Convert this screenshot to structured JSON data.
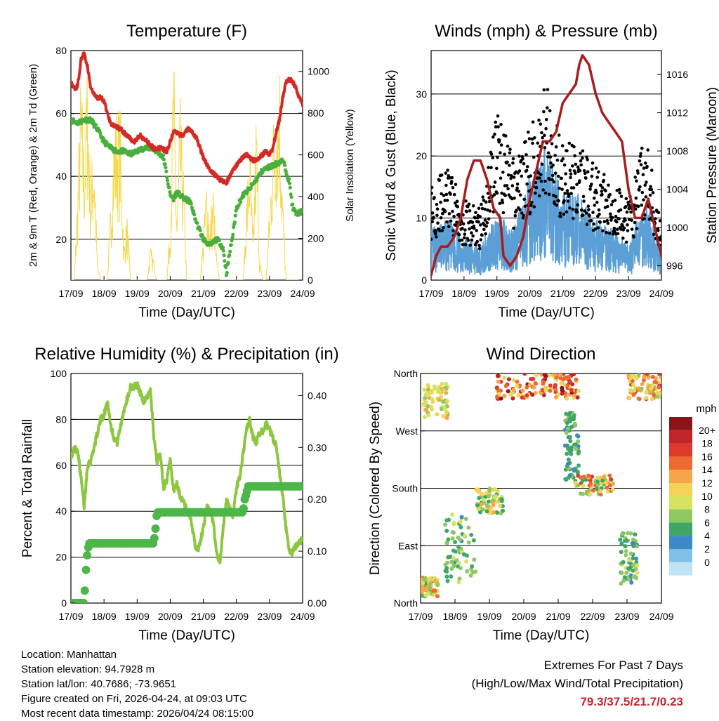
{
  "chart_data": [
    {
      "type": "line",
      "title": "Temperature (F)",
      "xlabel": "Time (Day/UTC)",
      "ylabel": "2m & 9m T (Red, Orange) & 2m Td (Green)",
      "y2label": "Solar Insolation (Yellow)",
      "x_ticks": [
        "17/09",
        "18/09",
        "19/09",
        "20/09",
        "21/09",
        "22/09",
        "23/09",
        "24/09"
      ],
      "ylim": [
        7,
        80
      ],
      "y_ticks": [
        20,
        40,
        60,
        80
      ],
      "y2lim": [
        0,
        1100
      ],
      "y2_ticks": [
        0,
        200,
        400,
        600,
        800,
        1000
      ],
      "colors": {
        "temp": "#d42a25",
        "dew": "#4aae3c",
        "solar": "#f5d84c"
      },
      "series": [
        {
          "name": "2m T",
          "axis": "left",
          "x": [
            0,
            0.05,
            0.1,
            0.15,
            0.2,
            0.25,
            0.3,
            0.4,
            0.5,
            0.6,
            0.7,
            0.8,
            0.9,
            1.0,
            1.1,
            1.2,
            1.3,
            1.5,
            1.7,
            1.9,
            2.1,
            2.3,
            2.5,
            2.7,
            2.9,
            3.0,
            3.1,
            3.2,
            3.3,
            3.4,
            3.5,
            3.6,
            3.8,
            4.0,
            4.1,
            4.2,
            4.3,
            4.5,
            4.7,
            4.9,
            5.1,
            5.3,
            5.5,
            5.7,
            5.9,
            6.0,
            6.1,
            6.2,
            6.3,
            6.4,
            6.5,
            6.6,
            6.7,
            6.8,
            6.9,
            7.0
          ],
          "values": [
            70,
            69,
            68,
            68,
            69,
            72,
            77,
            79,
            75,
            68,
            66,
            65,
            65,
            64,
            60,
            57,
            56,
            55,
            53,
            51,
            53,
            51,
            49,
            49,
            48,
            51,
            54,
            54,
            53,
            53,
            55,
            55,
            52,
            46,
            44,
            42,
            41,
            39,
            38,
            42,
            45,
            47,
            45,
            46,
            48,
            47,
            49,
            54,
            58,
            65,
            70,
            71,
            70,
            68,
            65,
            63
          ]
        },
        {
          "name": "2m Td",
          "axis": "left",
          "x": [
            0,
            0.2,
            0.4,
            0.6,
            0.8,
            1.0,
            1.2,
            1.4,
            1.6,
            1.8,
            2.0,
            2.2,
            2.4,
            2.6,
            2.8,
            3.0,
            3.1,
            3.2,
            3.4,
            3.6,
            3.8,
            4.0,
            4.2,
            4.4,
            4.5,
            4.6,
            4.7,
            4.8,
            4.9,
            5.0,
            5.2,
            5.4,
            5.6,
            5.8,
            6.0,
            6.2,
            6.4,
            6.5,
            6.6,
            6.7,
            6.8,
            7.0
          ],
          "values": [
            58,
            57,
            58,
            58,
            55,
            51,
            49,
            48,
            48,
            47,
            48,
            49,
            49,
            48,
            46,
            34,
            33,
            35,
            33,
            32,
            25,
            20,
            18,
            20,
            19,
            17,
            9,
            16,
            22,
            30,
            34,
            36,
            39,
            42,
            43,
            44,
            45,
            42,
            38,
            30,
            28,
            29
          ]
        },
        {
          "name": "Solar",
          "axis": "right",
          "x": [
            0,
            0.1,
            0.2,
            0.3,
            0.4,
            0.5,
            0.6,
            0.7,
            0.8,
            0.9,
            1.0,
            1.1,
            1.2,
            1.3,
            1.4,
            1.5,
            1.6,
            1.7,
            1.8,
            1.9,
            2.0,
            2.1,
            2.2,
            2.3,
            2.4,
            2.5,
            2.6,
            2.7,
            2.8,
            2.9,
            3.0,
            3.1,
            3.2,
            3.3,
            3.4,
            3.5,
            3.6,
            3.7,
            3.8,
            3.9,
            4.0,
            4.1,
            4.2,
            4.3,
            4.4,
            4.5,
            4.6,
            4.7,
            4.8,
            4.9,
            5.0,
            5.1,
            5.2,
            5.3,
            5.4,
            5.5,
            5.6,
            5.7,
            5.8,
            5.9,
            6.0,
            6.1,
            6.2,
            6.3,
            6.4,
            6.5,
            6.6,
            6.7,
            6.8,
            6.9,
            7.0
          ],
          "values": [
            0,
            0,
            400,
            950,
            600,
            1000,
            450,
            700,
            80,
            0,
            0,
            0,
            350,
            700,
            800,
            750,
            150,
            300,
            0,
            0,
            0,
            0,
            0,
            0,
            150,
            100,
            0,
            0,
            0,
            0,
            300,
            1070,
            300,
            800,
            500,
            0,
            0,
            0,
            0,
            0,
            200,
            500,
            250,
            450,
            100,
            0,
            0,
            0,
            0,
            0,
            0,
            0,
            0,
            350,
            650,
            180,
            800,
            100,
            0,
            0,
            350,
            700,
            900,
            1000,
            400,
            0,
            0,
            0,
            0,
            0,
            0
          ]
        }
      ]
    },
    {
      "type": "line",
      "title": "Winds (mph) & Pressure (mb)",
      "xlabel": "Time (Day/UTC)",
      "ylabel": "Sonic Wind & Gust (Blue, Black)",
      "y2label": "Station Pressure (Maroon)",
      "x_ticks": [
        "17/09",
        "18/09",
        "19/09",
        "20/09",
        "21/09",
        "22/09",
        "23/09",
        "24/09"
      ],
      "ylim": [
        0,
        37
      ],
      "y_ticks": [
        0,
        10,
        20,
        30
      ],
      "y2lim": [
        994.5,
        1018.5
      ],
      "y2_ticks": [
        996,
        1000,
        1004,
        1008,
        1012,
        1016
      ],
      "colors": {
        "wind": "#5b9fd6",
        "gust": "#000000",
        "pressure": "#a81d1d"
      },
      "series": [
        {
          "name": "Wind",
          "axis": "left",
          "x": [
            0,
            0.5,
            1.0,
            1.5,
            2.0,
            2.5,
            3.0,
            3.5,
            4.0,
            4.5,
            5.0,
            5.5,
            6.0,
            6.5,
            7.0
          ],
          "values": [
            6,
            7,
            5,
            4,
            8,
            6,
            12,
            16,
            10,
            10,
            7,
            6,
            4,
            10,
            3
          ]
        },
        {
          "name": "Gust",
          "axis": "left",
          "x": [
            0,
            0.5,
            1.0,
            1.5,
            2.0,
            2.5,
            3.0,
            3.5,
            4.0,
            4.5,
            5.0,
            5.5,
            6.0,
            6.5,
            7.0
          ],
          "values": [
            12,
            14,
            10,
            9,
            22,
            15,
            19,
            25,
            17,
            17,
            14,
            13,
            10,
            18,
            8
          ]
        },
        {
          "name": "Pressure",
          "axis": "right",
          "x": [
            0,
            0.15,
            0.3,
            0.5,
            0.7,
            0.9,
            1.1,
            1.3,
            1.5,
            1.7,
            1.9,
            2.1,
            2.2,
            2.4,
            2.6,
            2.8,
            3.0,
            3.2,
            3.4,
            3.6,
            3.8,
            4.0,
            4.2,
            4.4,
            4.5,
            4.6,
            4.8,
            5.0,
            5.2,
            5.4,
            5.6,
            5.8,
            6.0,
            6.2,
            6.4,
            6.6,
            6.8,
            7.0
          ],
          "values": [
            995,
            997,
            998,
            998,
            999,
            1001,
            1005,
            1007,
            1007,
            1005,
            1002,
            1001,
            997,
            996,
            997,
            999,
            1003,
            1006,
            1009,
            1009,
            1010,
            1013,
            1014,
            1015,
            1017,
            1018,
            1017,
            1014,
            1012,
            1011,
            1010,
            1009,
            1004,
            1001,
            1001,
            1003,
            1000,
            997
          ]
        }
      ]
    },
    {
      "type": "line",
      "title": "Relative Humidity (%) & Precipitation (in)",
      "xlabel": "Time (Day/UTC)",
      "ylabel": "Percent & Total Rainfall",
      "x_ticks": [
        "17/09",
        "18/09",
        "19/09",
        "20/09",
        "21/09",
        "22/09",
        "23/09",
        "24/09"
      ],
      "ylim": [
        0,
        100
      ],
      "y_ticks": [
        0,
        20,
        40,
        60,
        80,
        100
      ],
      "y2lim": [
        0,
        0.4425
      ],
      "y2_ticks": [
        "0.00",
        "0.10",
        "0.20",
        "0.30",
        "0.40"
      ],
      "colors": {
        "rh": "#8dc63f",
        "precip": "#4cb748"
      },
      "series": [
        {
          "name": "Relative Humidity",
          "axis": "left",
          "x": [
            0,
            0.1,
            0.2,
            0.3,
            0.4,
            0.5,
            0.6,
            0.7,
            0.8,
            0.9,
            1.0,
            1.1,
            1.2,
            1.3,
            1.4,
            1.6,
            1.8,
            2.0,
            2.2,
            2.4,
            2.5,
            2.6,
            2.7,
            2.8,
            2.9,
            3.0,
            3.1,
            3.2,
            3.3,
            3.4,
            3.5,
            3.6,
            3.7,
            3.8,
            3.9,
            4.0,
            4.1,
            4.2,
            4.3,
            4.4,
            4.5,
            4.6,
            4.7,
            4.8,
            4.9,
            5.0,
            5.1,
            5.2,
            5.3,
            5.4,
            5.5,
            5.6,
            5.7,
            5.8,
            5.9,
            6.0,
            6.2,
            6.4,
            6.5,
            6.6,
            6.7,
            6.8,
            7.0
          ],
          "values": [
            64,
            67,
            67,
            55,
            42,
            60,
            62,
            68,
            74,
            80,
            82,
            88,
            78,
            72,
            70,
            84,
            94,
            95,
            88,
            92,
            74,
            62,
            65,
            50,
            54,
            62,
            48,
            52,
            46,
            45,
            40,
            38,
            30,
            22,
            26,
            33,
            42,
            40,
            35,
            22,
            18,
            33,
            44,
            42,
            38,
            50,
            55,
            65,
            75,
            80,
            72,
            70,
            74,
            75,
            78,
            76,
            68,
            46,
            32,
            22,
            22,
            25,
            28
          ]
        },
        {
          "name": "Total Precipitation",
          "axis": "right",
          "x": [
            0,
            0.4,
            0.45,
            0.5,
            0.55,
            1.0,
            2.0,
            2.5,
            2.55,
            2.6,
            3.0,
            4.0,
            5.0,
            5.2,
            5.25,
            5.3,
            5.35,
            6.0,
            7.0
          ],
          "values": [
            0,
            0,
            0.06,
            0.1,
            0.115,
            0.115,
            0.115,
            0.115,
            0.14,
            0.175,
            0.175,
            0.175,
            0.175,
            0.175,
            0.2,
            0.21,
            0.225,
            0.225,
            0.225
          ]
        }
      ]
    },
    {
      "type": "scatter",
      "title": "Wind Direction",
      "xlabel": "Time (Day/UTC)",
      "ylabel": "Direction (Colored By Speed)",
      "x_ticks": [
        "17/09",
        "18/09",
        "19/09",
        "20/09",
        "21/09",
        "22/09",
        "23/09",
        "24/09"
      ],
      "y_ticks": [
        "North",
        "East",
        "South",
        "West",
        "North"
      ],
      "legend_title": "mph",
      "legend_labels": [
        "20+",
        "18",
        "16",
        "14",
        "12",
        "10",
        "8",
        "6",
        "4",
        "2",
        "0"
      ],
      "legend_colors": [
        "#8c1418",
        "#c0252a",
        "#dc3a2a",
        "#ee6a33",
        "#f6a64a",
        "#f4d257",
        "#d6e35e",
        "#90c860",
        "#3ea766",
        "#3d88c6",
        "#7fc0e8",
        "#bfe4f6"
      ],
      "clusters": [
        {
          "x": [
            0.1,
            0.8
          ],
          "dir": [
            290,
            345
          ],
          "speed": [
            6,
            12
          ]
        },
        {
          "x": [
            0.0,
            0.5
          ],
          "dir": [
            10,
            40
          ],
          "speed": [
            4,
            14
          ]
        },
        {
          "x": [
            0.7,
            1.6
          ],
          "dir": [
            30,
            140
          ],
          "speed": [
            2,
            8
          ]
        },
        {
          "x": [
            1.6,
            2.4
          ],
          "dir": [
            140,
            180
          ],
          "speed": [
            4,
            12
          ]
        },
        {
          "x": [
            2.2,
            3.6
          ],
          "dir": [
            320,
            360
          ],
          "speed": [
            8,
            20
          ]
        },
        {
          "x": [
            3.6,
            4.6
          ],
          "dir": [
            320,
            360
          ],
          "speed": [
            8,
            20
          ]
        },
        {
          "x": [
            4.2,
            4.6
          ],
          "dir": [
            190,
            300
          ],
          "speed": [
            2,
            6
          ]
        },
        {
          "x": [
            4.5,
            5.6
          ],
          "dir": [
            170,
            200
          ],
          "speed": [
            4,
            16
          ]
        },
        {
          "x": [
            5.8,
            6.3
          ],
          "dir": [
            30,
            110
          ],
          "speed": [
            2,
            8
          ]
        },
        {
          "x": [
            6.0,
            7.0
          ],
          "dir": [
            320,
            360
          ],
          "speed": [
            6,
            16
          ]
        }
      ]
    }
  ],
  "footer": {
    "location": "Location: Manhattan",
    "elevation": "Station elevation: 94.7928 m",
    "latlon": "Station lat/lon: 40.7686; -73.9651",
    "created": "Figure created on Fri, 2026-04-24, at 09:03 UTC",
    "timestamp": "Most recent data timestamp: 2026/04/24 08:15:00"
  },
  "extremes": {
    "heading": "Extremes For Past 7 Days",
    "subheading": "(High/Low/Max Wind/Total Precipitation)",
    "values": "79.3/37.5/21.7/0.23"
  }
}
